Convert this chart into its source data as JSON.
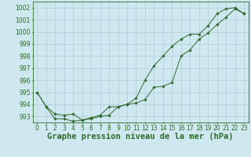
{
  "title": "Graphe pression niveau de la mer (hPa)",
  "background_color": "#cfe8f0",
  "grid_color": "#b0ccda",
  "line_color": "#2d6a2d",
  "x_labels": [
    "0",
    "1",
    "2",
    "3",
    "4",
    "5",
    "6",
    "7",
    "8",
    "9",
    "10",
    "11",
    "12",
    "13",
    "14",
    "15",
    "16",
    "17",
    "18",
    "19",
    "20",
    "21",
    "22",
    "23"
  ],
  "ylim": [
    992.5,
    1002.5
  ],
  "yticks": [
    993,
    994,
    995,
    996,
    997,
    998,
    999,
    1000,
    1001,
    1002
  ],
  "line1": [
    995.0,
    993.8,
    992.8,
    992.8,
    992.6,
    992.7,
    992.8,
    993.0,
    993.1,
    993.8,
    994.0,
    994.1,
    994.4,
    995.4,
    995.5,
    995.8,
    998.0,
    998.5,
    999.4,
    999.9,
    1000.6,
    1001.2,
    1001.9,
    1001.5
  ],
  "line2": [
    995.0,
    993.8,
    993.2,
    993.1,
    993.2,
    992.7,
    992.9,
    993.1,
    993.8,
    993.8,
    994.0,
    994.5,
    996.0,
    997.2,
    998.0,
    998.8,
    999.4,
    999.8,
    999.8,
    1000.5,
    1001.5,
    1001.9,
    1002.0,
    1001.5
  ],
  "xlabel_fontsize": 5.5,
  "ylabel_fontsize": 5.5,
  "title_fontsize": 7.5
}
